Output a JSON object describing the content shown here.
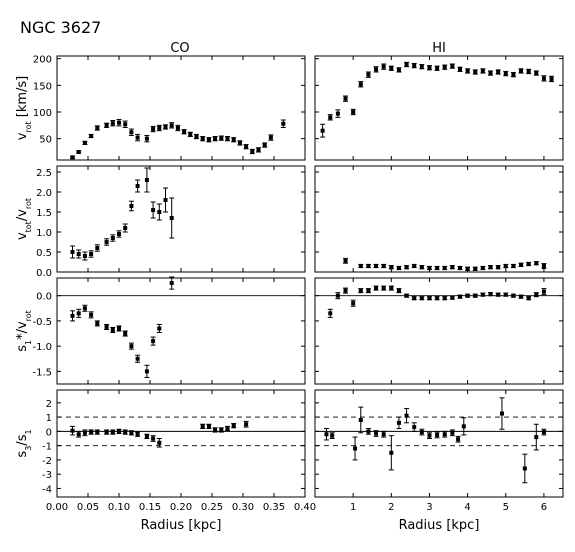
{
  "figure_title": "NGC 3627",
  "chart_data": [
    {
      "type": "scatter",
      "panel": "CO-row1",
      "column_title": "CO",
      "ylabel": "v_rot [km/s]",
      "xlim": [
        0,
        0.4
      ],
      "ylim": [
        10,
        205
      ],
      "yticks": [
        50,
        100,
        150,
        200
      ],
      "xticks": [
        0,
        0.05,
        0.1,
        0.15,
        0.2,
        0.25,
        0.3,
        0.35,
        0.4
      ],
      "ytick_labels": true,
      "xtick_labels": false,
      "ref_lines": [],
      "points": [
        [
          0.025,
          15,
          2
        ],
        [
          0.035,
          25,
          2
        ],
        [
          0.045,
          42,
          3
        ],
        [
          0.055,
          55,
          3
        ],
        [
          0.065,
          70,
          4
        ],
        [
          0.08,
          75,
          4
        ],
        [
          0.09,
          79,
          5
        ],
        [
          0.1,
          80,
          6
        ],
        [
          0.11,
          77,
          6
        ],
        [
          0.12,
          62,
          6
        ],
        [
          0.13,
          52,
          6
        ],
        [
          0.145,
          50,
          6
        ],
        [
          0.155,
          68,
          5
        ],
        [
          0.165,
          70,
          5
        ],
        [
          0.175,
          72,
          4
        ],
        [
          0.185,
          75,
          5
        ],
        [
          0.195,
          70,
          5
        ],
        [
          0.205,
          63,
          4
        ],
        [
          0.215,
          58,
          4
        ],
        [
          0.225,
          54,
          4
        ],
        [
          0.235,
          50,
          4
        ],
        [
          0.245,
          48,
          4
        ],
        [
          0.255,
          50,
          4
        ],
        [
          0.265,
          51,
          4
        ],
        [
          0.275,
          50,
          4
        ],
        [
          0.285,
          48,
          4
        ],
        [
          0.295,
          42,
          4
        ],
        [
          0.305,
          35,
          4
        ],
        [
          0.315,
          26,
          4
        ],
        [
          0.325,
          29,
          4
        ],
        [
          0.335,
          38,
          4
        ],
        [
          0.345,
          52,
          5
        ],
        [
          0.365,
          78,
          7
        ]
      ]
    },
    {
      "type": "scatter",
      "panel": "HI-row1",
      "column_title": "HI",
      "xlim": [
        0,
        6.5
      ],
      "ylim": [
        10,
        205
      ],
      "yticks": [
        50,
        100,
        150,
        200
      ],
      "xticks": [
        1,
        2,
        3,
        4,
        5,
        6
      ],
      "ytick_labels": false,
      "xtick_labels": false,
      "ref_lines": [],
      "points": [
        [
          0.2,
          65,
          12
        ],
        [
          0.4,
          90,
          5
        ],
        [
          0.6,
          97,
          7
        ],
        [
          0.8,
          125,
          5
        ],
        [
          1.0,
          100,
          5
        ],
        [
          1.2,
          152,
          5
        ],
        [
          1.4,
          170,
          5
        ],
        [
          1.6,
          180,
          5
        ],
        [
          1.8,
          185,
          5
        ],
        [
          2.0,
          182,
          4
        ],
        [
          2.2,
          179,
          4
        ],
        [
          2.4,
          189,
          4
        ],
        [
          2.6,
          187,
          4
        ],
        [
          2.8,
          185,
          4
        ],
        [
          3.0,
          183,
          4
        ],
        [
          3.2,
          182,
          4
        ],
        [
          3.4,
          184,
          4
        ],
        [
          3.6,
          186,
          4
        ],
        [
          3.8,
          180,
          4
        ],
        [
          4.0,
          177,
          4
        ],
        [
          4.2,
          175,
          4
        ],
        [
          4.4,
          177,
          4
        ],
        [
          4.6,
          173,
          4
        ],
        [
          4.8,
          175,
          4
        ],
        [
          5.0,
          172,
          4
        ],
        [
          5.2,
          170,
          4
        ],
        [
          5.4,
          177,
          4
        ],
        [
          5.6,
          176,
          4
        ],
        [
          5.8,
          173,
          4
        ],
        [
          6.0,
          163,
          5
        ],
        [
          6.2,
          162,
          5
        ]
      ]
    },
    {
      "type": "scatter",
      "panel": "CO-row2",
      "ylabel": "v_tot/v_rot",
      "xlim": [
        0,
        0.4
      ],
      "ylim": [
        0,
        2.65
      ],
      "yticks": [
        0,
        0.5,
        1,
        1.5,
        2,
        2.5
      ],
      "xticks": [
        0,
        0.05,
        0.1,
        0.15,
        0.2,
        0.25,
        0.3,
        0.35,
        0.4
      ],
      "ytick_labels": true,
      "xtick_labels": false,
      "ref_lines": [],
      "points": [
        [
          0.025,
          0.5,
          0.15
        ],
        [
          0.035,
          0.45,
          0.1
        ],
        [
          0.045,
          0.4,
          0.1
        ],
        [
          0.055,
          0.45,
          0.08
        ],
        [
          0.065,
          0.6,
          0.08
        ],
        [
          0.08,
          0.75,
          0.08
        ],
        [
          0.09,
          0.85,
          0.08
        ],
        [
          0.1,
          0.95,
          0.08
        ],
        [
          0.11,
          1.1,
          0.1
        ],
        [
          0.12,
          1.65,
          0.12
        ],
        [
          0.13,
          2.15,
          0.15
        ],
        [
          0.145,
          2.3,
          0.3
        ],
        [
          0.155,
          1.55,
          0.2
        ],
        [
          0.165,
          1.5,
          0.2
        ],
        [
          0.175,
          1.8,
          0.3
        ],
        [
          0.185,
          1.35,
          0.5
        ]
      ]
    },
    {
      "type": "scatter",
      "panel": "HI-row2",
      "xlim": [
        0,
        6.5
      ],
      "ylim": [
        0,
        2.65
      ],
      "yticks": [
        0,
        0.5,
        1,
        1.5,
        2,
        2.5
      ],
      "xticks": [
        1,
        2,
        3,
        4,
        5,
        6
      ],
      "ytick_labels": false,
      "xtick_labels": false,
      "ref_lines": [],
      "points": [
        [
          0.8,
          0.28,
          0.06
        ],
        [
          1.2,
          0.15,
          0.04
        ],
        [
          1.4,
          0.15,
          0.04
        ],
        [
          1.6,
          0.15,
          0.04
        ],
        [
          1.8,
          0.15,
          0.04
        ],
        [
          2.0,
          0.12,
          0.04
        ],
        [
          2.2,
          0.1,
          0.04
        ],
        [
          2.4,
          0.12,
          0.04
        ],
        [
          2.6,
          0.15,
          0.04
        ],
        [
          2.8,
          0.12,
          0.04
        ],
        [
          3.0,
          0.1,
          0.04
        ],
        [
          3.2,
          0.1,
          0.04
        ],
        [
          3.4,
          0.1,
          0.04
        ],
        [
          3.6,
          0.12,
          0.04
        ],
        [
          3.8,
          0.1,
          0.04
        ],
        [
          4.0,
          0.08,
          0.04
        ],
        [
          4.2,
          0.08,
          0.04
        ],
        [
          4.4,
          0.1,
          0.04
        ],
        [
          4.6,
          0.12,
          0.04
        ],
        [
          4.8,
          0.12,
          0.04
        ],
        [
          5.0,
          0.15,
          0.04
        ],
        [
          5.2,
          0.15,
          0.04
        ],
        [
          5.4,
          0.18,
          0.04
        ],
        [
          5.6,
          0.2,
          0.04
        ],
        [
          5.8,
          0.22,
          0.04
        ],
        [
          6.0,
          0.15,
          0.06
        ]
      ]
    },
    {
      "type": "scatter",
      "panel": "CO-row3",
      "ylabel": "s_1*/v_rot",
      "xlim": [
        0,
        0.4
      ],
      "ylim": [
        -1.75,
        0.35
      ],
      "yticks": [
        0,
        -0.5,
        -1,
        -1.5
      ],
      "xticks": [
        0,
        0.05,
        0.1,
        0.15,
        0.2,
        0.25,
        0.3,
        0.35,
        0.4
      ],
      "ytick_labels": true,
      "xtick_labels": false,
      "ref_lines": [
        0
      ],
      "points": [
        [
          0.025,
          -0.4,
          0.1
        ],
        [
          0.035,
          -0.35,
          0.08
        ],
        [
          0.045,
          -0.25,
          0.06
        ],
        [
          0.055,
          -0.38,
          0.06
        ],
        [
          0.065,
          -0.55,
          0.05
        ],
        [
          0.08,
          -0.62,
          0.05
        ],
        [
          0.09,
          -0.68,
          0.05
        ],
        [
          0.1,
          -0.65,
          0.05
        ],
        [
          0.11,
          -0.75,
          0.05
        ],
        [
          0.12,
          -1.0,
          0.06
        ],
        [
          0.13,
          -1.25,
          0.07
        ],
        [
          0.145,
          -1.5,
          0.12
        ],
        [
          0.155,
          -0.9,
          0.08
        ],
        [
          0.165,
          -0.65,
          0.08
        ],
        [
          0.185,
          0.25,
          0.12
        ]
      ]
    },
    {
      "type": "scatter",
      "panel": "HI-row3",
      "xlim": [
        0,
        6.5
      ],
      "ylim": [
        -1.75,
        0.35
      ],
      "yticks": [
        0,
        -0.5,
        -1,
        -1.5
      ],
      "xticks": [
        1,
        2,
        3,
        4,
        5,
        6
      ],
      "ytick_labels": false,
      "xtick_labels": false,
      "ref_lines": [
        0
      ],
      "points": [
        [
          0.4,
          -0.35,
          0.08
        ],
        [
          0.6,
          0,
          0.06
        ],
        [
          0.8,
          0.1,
          0.05
        ],
        [
          1.0,
          -0.15,
          0.06
        ],
        [
          1.2,
          0.1,
          0.04
        ],
        [
          1.4,
          0.1,
          0.04
        ],
        [
          1.6,
          0.15,
          0.04
        ],
        [
          1.8,
          0.15,
          0.04
        ],
        [
          2.0,
          0.15,
          0.04
        ],
        [
          2.2,
          0.1,
          0.04
        ],
        [
          2.4,
          0,
          0.03
        ],
        [
          2.6,
          -0.05,
          0.03
        ],
        [
          2.8,
          -0.05,
          0.03
        ],
        [
          3.0,
          -0.05,
          0.03
        ],
        [
          3.2,
          -0.05,
          0.03
        ],
        [
          3.4,
          -0.05,
          0.03
        ],
        [
          3.6,
          -0.04,
          0.03
        ],
        [
          3.8,
          -0.02,
          0.03
        ],
        [
          4.0,
          0,
          0.03
        ],
        [
          4.2,
          0,
          0.03
        ],
        [
          4.4,
          0.02,
          0.03
        ],
        [
          4.6,
          0.03,
          0.03
        ],
        [
          4.8,
          0.02,
          0.03
        ],
        [
          5.0,
          0.02,
          0.03
        ],
        [
          5.2,
          0,
          0.03
        ],
        [
          5.4,
          -0.02,
          0.03
        ],
        [
          5.6,
          -0.05,
          0.03
        ],
        [
          5.8,
          0.02,
          0.04
        ],
        [
          6.0,
          0.08,
          0.06
        ]
      ]
    },
    {
      "type": "scatter",
      "panel": "CO-row4",
      "ylabel": "s_3/s_1",
      "xlabel": "Radius [kpc]",
      "xlim": [
        0,
        0.4
      ],
      "ylim": [
        -4.6,
        2.9
      ],
      "yticks": [
        2,
        1,
        0,
        -1,
        -2,
        -3,
        -4
      ],
      "xticks": [
        0,
        0.05,
        0.1,
        0.15,
        0.2,
        0.25,
        0.3,
        0.35,
        0.4
      ],
      "ytick_labels": true,
      "xtick_labels": true,
      "ref_lines": [
        0
      ],
      "dashed_lines": [
        1,
        -1
      ],
      "points": [
        [
          0.025,
          0.05,
          0.3
        ],
        [
          0.035,
          -0.2,
          0.2
        ],
        [
          0.045,
          -0.1,
          0.2
        ],
        [
          0.055,
          -0.05,
          0.15
        ],
        [
          0.065,
          -0.05,
          0.15
        ],
        [
          0.08,
          -0.05,
          0.15
        ],
        [
          0.09,
          -0.05,
          0.15
        ],
        [
          0.1,
          0,
          0.15
        ],
        [
          0.11,
          -0.05,
          0.15
        ],
        [
          0.12,
          -0.1,
          0.15
        ],
        [
          0.13,
          -0.2,
          0.15
        ],
        [
          0.145,
          -0.35,
          0.15
        ],
        [
          0.155,
          -0.5,
          0.2
        ],
        [
          0.165,
          -0.8,
          0.3
        ],
        [
          0.235,
          0.35,
          0.15
        ],
        [
          0.245,
          0.35,
          0.15
        ],
        [
          0.255,
          0.1,
          0.15
        ],
        [
          0.265,
          0.1,
          0.15
        ],
        [
          0.275,
          0.2,
          0.15
        ],
        [
          0.285,
          0.4,
          0.15
        ],
        [
          0.305,
          0.5,
          0.2
        ]
      ]
    },
    {
      "type": "scatter",
      "panel": "HI-row4",
      "xlabel": "Radius [kpc]",
      "xlim": [
        0,
        6.5
      ],
      "ylim": [
        -4.6,
        2.9
      ],
      "yticks": [
        2,
        1,
        0,
        -1,
        -2,
        -3,
        -4
      ],
      "xticks": [
        1,
        2,
        3,
        4,
        5,
        6
      ],
      "ytick_labels": false,
      "xtick_labels": true,
      "ref_lines": [
        0
      ],
      "dashed_lines": [
        1,
        -1
      ],
      "points": [
        [
          0.3,
          -0.2,
          0.4
        ],
        [
          0.45,
          -0.3,
          0.2
        ],
        [
          1.05,
          -1.2,
          0.8
        ],
        [
          1.2,
          0.8,
          0.9
        ],
        [
          1.4,
          0,
          0.2
        ],
        [
          1.6,
          -0.15,
          0.2
        ],
        [
          1.8,
          -0.2,
          0.2
        ],
        [
          2.0,
          -1.5,
          1.2
        ],
        [
          2.2,
          0.6,
          0.4
        ],
        [
          2.4,
          1.1,
          0.5
        ],
        [
          2.6,
          0.3,
          0.3
        ],
        [
          2.8,
          -0.05,
          0.2
        ],
        [
          3.0,
          -0.3,
          0.2
        ],
        [
          3.2,
          -0.25,
          0.2
        ],
        [
          3.4,
          -0.2,
          0.2
        ],
        [
          3.6,
          -0.1,
          0.2
        ],
        [
          3.75,
          -0.55,
          0.2
        ],
        [
          3.9,
          0.35,
          0.6
        ],
        [
          4.9,
          1.25,
          1.1
        ],
        [
          5.5,
          -2.6,
          1.0
        ],
        [
          5.8,
          -0.4,
          0.9
        ],
        [
          6.0,
          -0.05,
          0.2
        ]
      ]
    }
  ]
}
